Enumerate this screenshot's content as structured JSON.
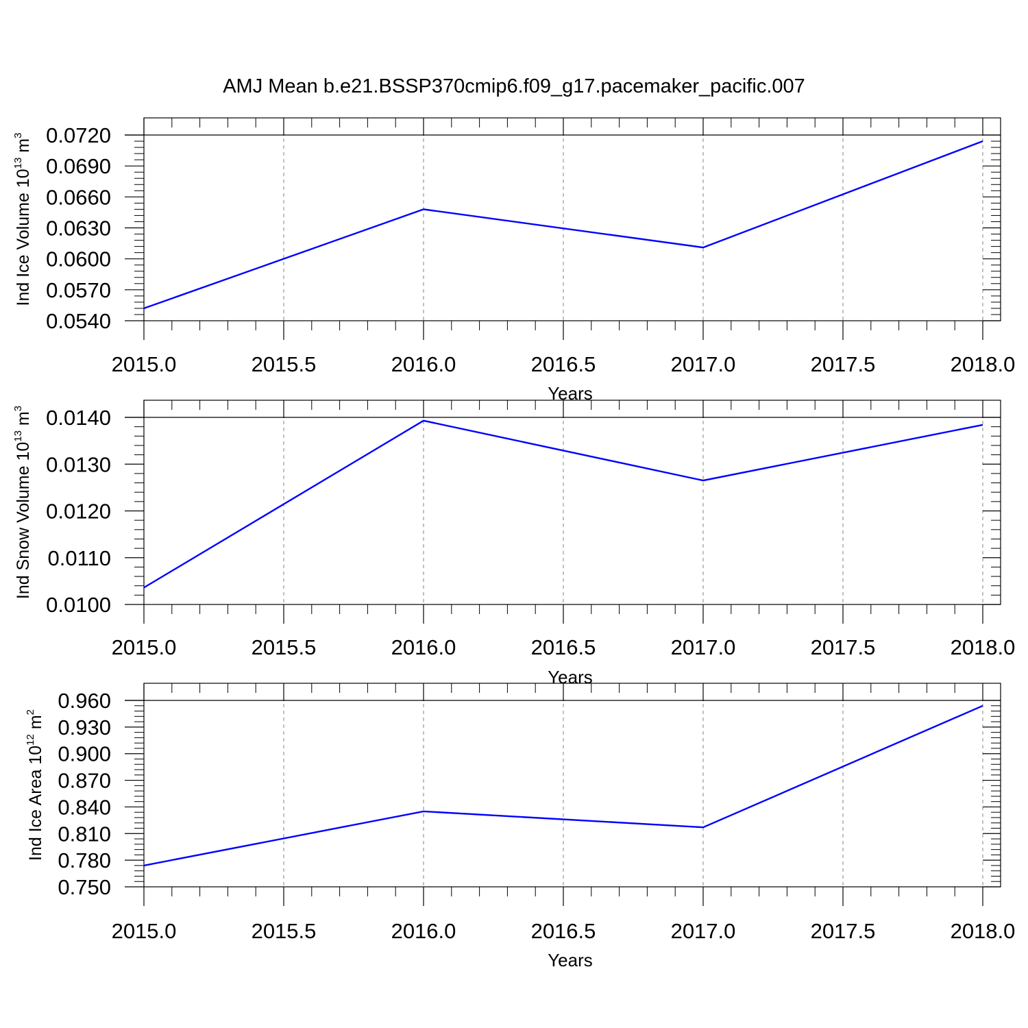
{
  "title": "AMJ Mean b.e21.BSSP370cmip6.f09_g17.pacemaker_pacific.007",
  "colors": {
    "line": "#0000ff",
    "axis": "#000000",
    "grid": "#808080"
  },
  "chart_data": [
    {
      "type": "line",
      "xlabel": "Years",
      "ylabel": {
        "text": "Ind Ice Volume 10",
        "exp": "13",
        "unit": " m",
        "unit_exp": "3"
      },
      "xlim": [
        2015.0,
        2018.0
      ],
      "ylim": [
        0.054,
        0.072
      ],
      "xticks": [
        "2015.0",
        "2015.5",
        "2016.0",
        "2016.5",
        "2017.0",
        "2017.5",
        "2018.0"
      ],
      "yticks": [
        "0.0540",
        "0.0570",
        "0.0600",
        "0.0630",
        "0.0660",
        "0.0690",
        "0.0720"
      ],
      "grid": "vertical-dashed",
      "series": [
        {
          "x": [
            2015,
            2016,
            2017,
            2018
          ],
          "values": [
            0.0552,
            0.0648,
            0.0611,
            0.0714
          ]
        }
      ]
    },
    {
      "type": "line",
      "xlabel": "Years",
      "ylabel": {
        "text": "Ind Snow Volume 10",
        "exp": "13",
        "unit": " m",
        "unit_exp": "3"
      },
      "xlim": [
        2015.0,
        2018.0
      ],
      "ylim": [
        0.01,
        0.014
      ],
      "xticks": [
        "2015.0",
        "2015.5",
        "2016.0",
        "2016.5",
        "2017.0",
        "2017.5",
        "2018.0"
      ],
      "yticks": [
        "0.0100",
        "0.0110",
        "0.0120",
        "0.0130",
        "0.0140"
      ],
      "grid": "vertical-dashed",
      "series": [
        {
          "x": [
            2015,
            2016,
            2017,
            2018
          ],
          "values": [
            0.01036,
            0.01393,
            0.01265,
            0.01384
          ]
        }
      ]
    },
    {
      "type": "line",
      "xlabel": "Years",
      "ylabel": {
        "text": "Ind Ice Area 10",
        "exp": "12",
        "unit": " m",
        "unit_exp": "2"
      },
      "xlim": [
        2015.0,
        2018.0
      ],
      "ylim": [
        0.75,
        0.96
      ],
      "xticks": [
        "2015.0",
        "2015.5",
        "2016.0",
        "2016.5",
        "2017.0",
        "2017.5",
        "2018.0"
      ],
      "yticks": [
        "0.750",
        "0.780",
        "0.810",
        "0.840",
        "0.870",
        "0.900",
        "0.930",
        "0.960"
      ],
      "grid": "vertical-dashed",
      "series": [
        {
          "x": [
            2015,
            2016,
            2017,
            2018
          ],
          "values": [
            0.774,
            0.835,
            0.817,
            0.954
          ]
        }
      ]
    }
  ]
}
